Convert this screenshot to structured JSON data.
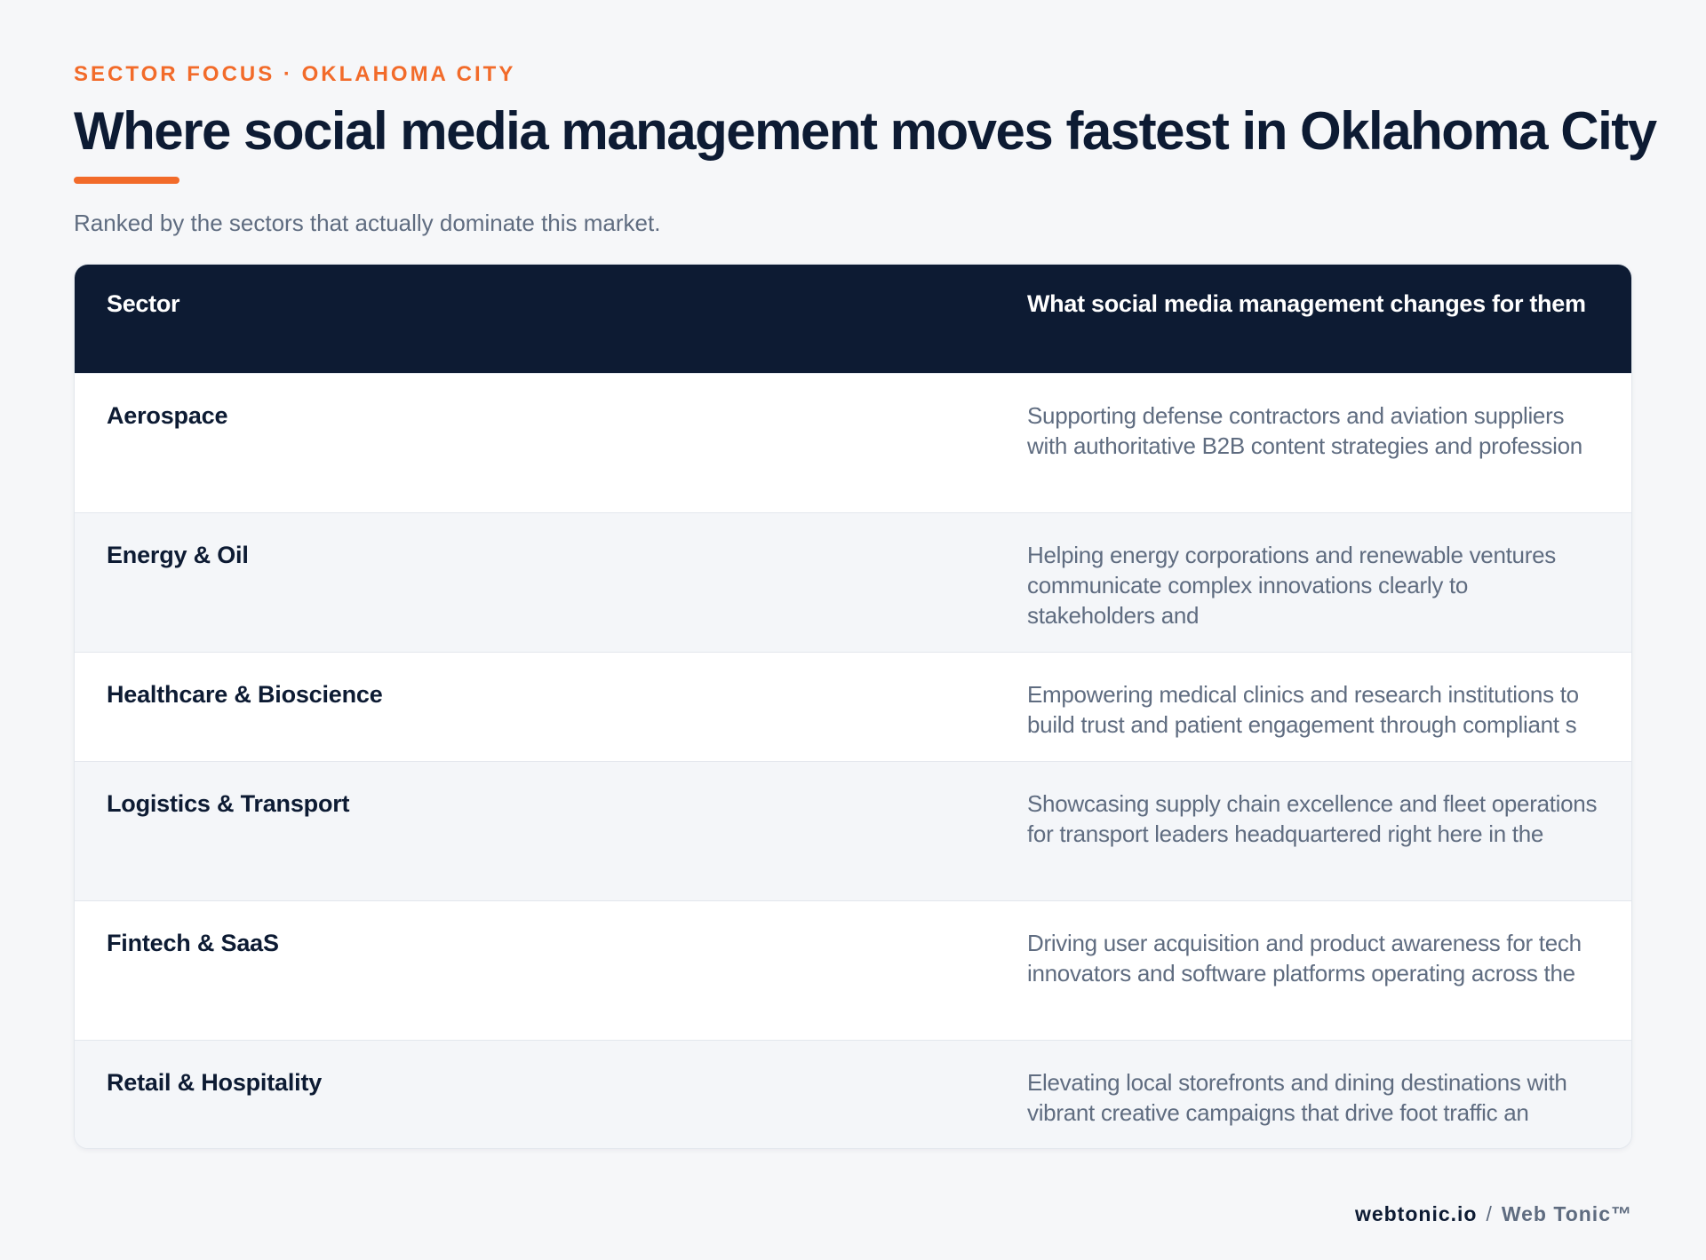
{
  "eyebrow": "SECTOR FOCUS · OKLAHOMA CITY",
  "title": "Where social media management moves fastest in Oklahoma City",
  "subtitle": "Ranked by the sectors that actually dominate this market.",
  "table": {
    "headers": [
      "Sector",
      "What social media management changes for them"
    ],
    "rows": [
      {
        "sector": "Aerospace",
        "description": "Supporting defense contractors and aviation suppliers with authoritative B2B content strategies and profession"
      },
      {
        "sector": "Energy & Oil",
        "description": "Helping energy corporations and renewable ventures communicate complex innovations clearly to stakeholders and"
      },
      {
        "sector": "Healthcare & Bioscience",
        "description": "Empowering medical clinics and research institutions to build trust and patient engagement through compliant s"
      },
      {
        "sector": "Logistics & Transport",
        "description": "Showcasing supply chain excellence and fleet operations for transport leaders headquartered right here in the"
      },
      {
        "sector": "Fintech & SaaS",
        "description": "Driving user acquisition and product awareness for tech innovators and software platforms operating across the"
      },
      {
        "sector": "Retail & Hospitality",
        "description": "Elevating local storefronts and dining destinations with vibrant creative campaigns that drive foot traffic an"
      }
    ]
  },
  "footer": {
    "domain": "webtonic.io",
    "separator": "/",
    "brand": "Web Tonic™"
  },
  "colors": {
    "accent": "#f26b2a",
    "navy": "#0d1b33",
    "muted": "#5f6c80",
    "background": "#f6f7f9"
  }
}
